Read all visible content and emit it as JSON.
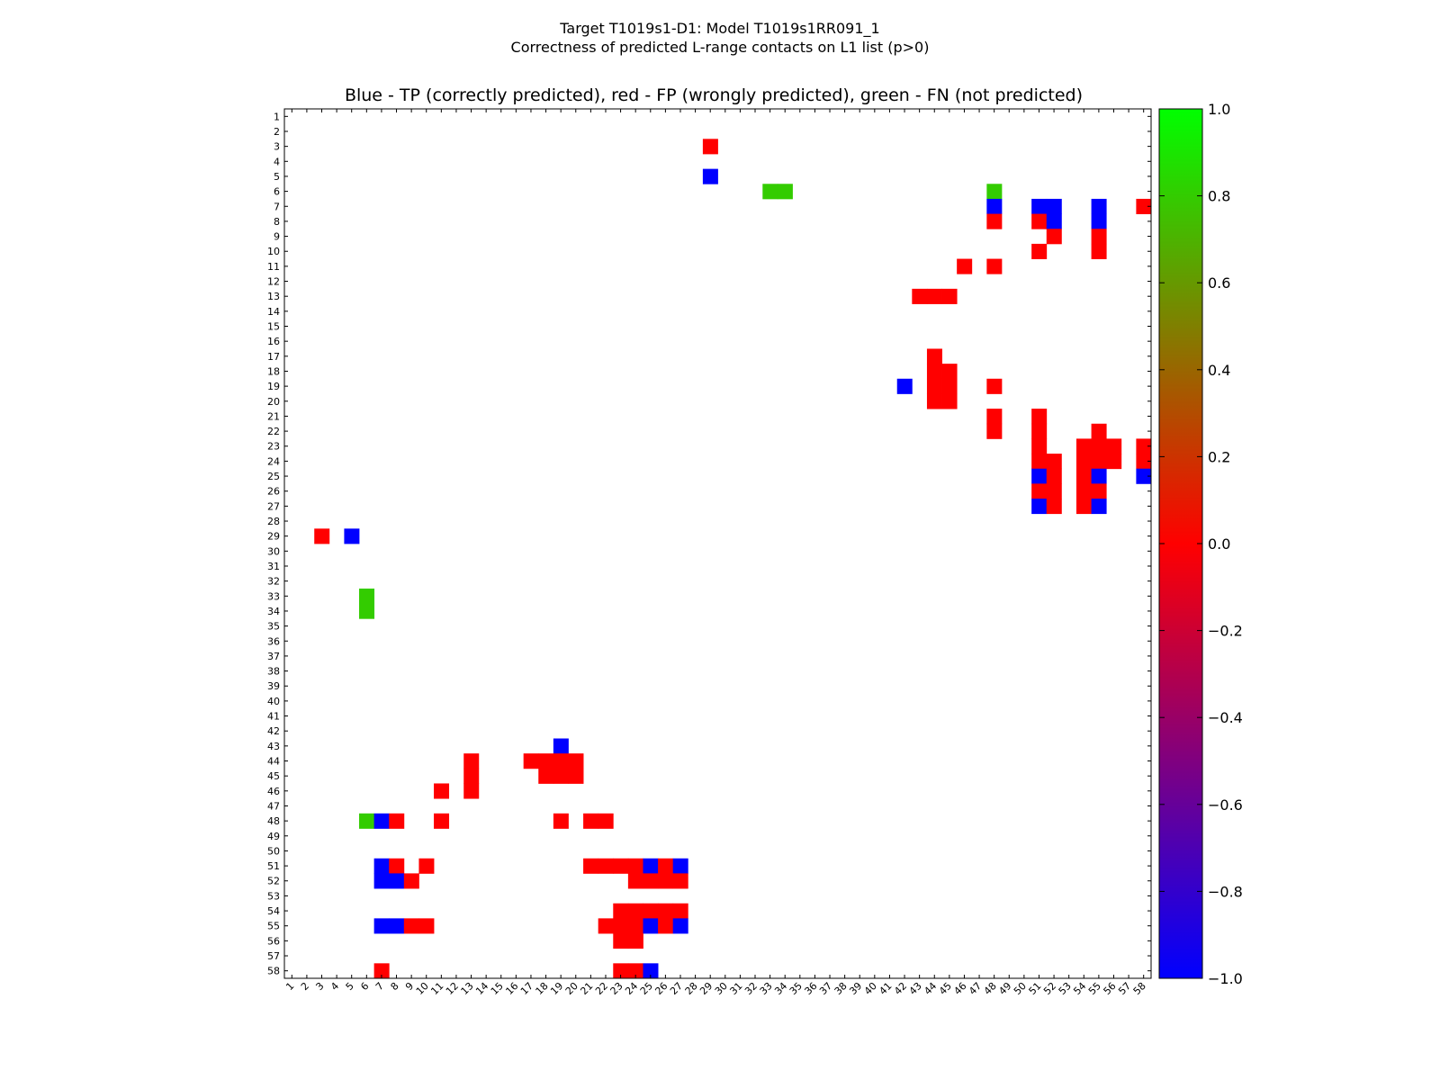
{
  "chart_data": [
    {
      "type": "heatmap",
      "title": "Blue - TP (correctly predicted), red - FP (wrongly predicted), green - FN (not predicted)",
      "suptitle": [
        "Target T1019s1-D1: Model T1019s1RR091_1",
        "Correctness of predicted L-range contacts on L1 list (p>0)"
      ],
      "x_range": [
        1,
        58
      ],
      "y_range": [
        1,
        58
      ],
      "x_tick_labels": [
        "1",
        "2",
        "3",
        "4",
        "5",
        "6",
        "7",
        "8",
        "9",
        "10",
        "11",
        "12",
        "13",
        "14",
        "15",
        "16",
        "17",
        "18",
        "19",
        "20",
        "21",
        "22",
        "23",
        "24",
        "25",
        "26",
        "27",
        "28",
        "29",
        "30",
        "31",
        "32",
        "33",
        "34",
        "35",
        "36",
        "37",
        "38",
        "39",
        "40",
        "41",
        "42",
        "43",
        "44",
        "45",
        "46",
        "47",
        "48",
        "49",
        "50",
        "51",
        "52",
        "53",
        "54",
        "55",
        "56",
        "57",
        "58"
      ],
      "y_tick_labels": [
        "1",
        "2",
        "3",
        "4",
        "5",
        "6",
        "7",
        "8",
        "9",
        "10",
        "11",
        "12",
        "13",
        "14",
        "15",
        "16",
        "17",
        "18",
        "19",
        "20",
        "21",
        "22",
        "23",
        "24",
        "25",
        "26",
        "27",
        "28",
        "29",
        "30",
        "31",
        "32",
        "33",
        "34",
        "35",
        "36",
        "37",
        "38",
        "39",
        "40",
        "41",
        "42",
        "43",
        "44",
        "45",
        "46",
        "47",
        "48",
        "49",
        "50",
        "51",
        "52",
        "53",
        "54",
        "55",
        "56",
        "57",
        "58"
      ],
      "legend": {
        "TP": "blue",
        "FP": "red",
        "FN": "green"
      },
      "cells_format": "[column, row, value]  value: -1 = TP (blue), 0 = FP (red), 0.8 = FN (green)",
      "cells": [
        [
          29,
          3,
          0
        ],
        [
          29,
          5,
          -1
        ],
        [
          33,
          6,
          0.8
        ],
        [
          34,
          6,
          0.8
        ],
        [
          48,
          6,
          0.8
        ],
        [
          48,
          7,
          -1
        ],
        [
          51,
          7,
          -1
        ],
        [
          52,
          7,
          -1
        ],
        [
          55,
          7,
          -1
        ],
        [
          58,
          7,
          0
        ],
        [
          48,
          8,
          0
        ],
        [
          51,
          8,
          0
        ],
        [
          52,
          8,
          -1
        ],
        [
          55,
          8,
          -1
        ],
        [
          52,
          9,
          0
        ],
        [
          55,
          9,
          0
        ],
        [
          51,
          10,
          0
        ],
        [
          55,
          10,
          0
        ],
        [
          46,
          11,
          0
        ],
        [
          48,
          11,
          0
        ],
        [
          43,
          13,
          0
        ],
        [
          44,
          13,
          0
        ],
        [
          45,
          13,
          0
        ],
        [
          44,
          17,
          0
        ],
        [
          44,
          18,
          0
        ],
        [
          45,
          18,
          0
        ],
        [
          42,
          19,
          -1
        ],
        [
          44,
          19,
          0
        ],
        [
          45,
          19,
          0
        ],
        [
          48,
          19,
          0
        ],
        [
          44,
          20,
          0
        ],
        [
          45,
          20,
          0
        ],
        [
          48,
          21,
          0
        ],
        [
          51,
          21,
          0
        ],
        [
          48,
          22,
          0
        ],
        [
          51,
          22,
          0
        ],
        [
          55,
          22,
          0
        ],
        [
          51,
          23,
          0
        ],
        [
          54,
          23,
          0
        ],
        [
          55,
          23,
          0
        ],
        [
          56,
          23,
          0
        ],
        [
          58,
          23,
          0
        ],
        [
          51,
          24,
          0
        ],
        [
          52,
          24,
          0
        ],
        [
          54,
          24,
          0
        ],
        [
          55,
          24,
          0
        ],
        [
          56,
          24,
          0
        ],
        [
          58,
          24,
          0
        ],
        [
          51,
          25,
          -1
        ],
        [
          52,
          25,
          0
        ],
        [
          54,
          25,
          0
        ],
        [
          55,
          25,
          -1
        ],
        [
          58,
          25,
          -1
        ],
        [
          51,
          26,
          0
        ],
        [
          52,
          26,
          0
        ],
        [
          54,
          26,
          0
        ],
        [
          55,
          26,
          0
        ],
        [
          51,
          27,
          -1
        ],
        [
          52,
          27,
          0
        ],
        [
          54,
          27,
          0
        ],
        [
          55,
          27,
          -1
        ],
        [
          3,
          29,
          0
        ],
        [
          5,
          29,
          -1
        ],
        [
          6,
          33,
          0.8
        ],
        [
          6,
          34,
          0.8
        ],
        [
          19,
          43,
          -1
        ],
        [
          13,
          44,
          0
        ],
        [
          17,
          44,
          0
        ],
        [
          18,
          44,
          0
        ],
        [
          19,
          44,
          0
        ],
        [
          20,
          44,
          0
        ],
        [
          13,
          45,
          0
        ],
        [
          18,
          45,
          0
        ],
        [
          19,
          45,
          0
        ],
        [
          20,
          45,
          0
        ],
        [
          11,
          46,
          0
        ],
        [
          13,
          46,
          0
        ],
        [
          6,
          48,
          0.8
        ],
        [
          7,
          48,
          -1
        ],
        [
          8,
          48,
          0
        ],
        [
          11,
          48,
          0
        ],
        [
          19,
          48,
          0
        ],
        [
          21,
          48,
          0
        ],
        [
          22,
          48,
          0
        ],
        [
          7,
          51,
          -1
        ],
        [
          8,
          51,
          0
        ],
        [
          10,
          51,
          0
        ],
        [
          21,
          51,
          0
        ],
        [
          22,
          51,
          0
        ],
        [
          23,
          51,
          0
        ],
        [
          24,
          51,
          0
        ],
        [
          25,
          51,
          -1
        ],
        [
          26,
          51,
          0
        ],
        [
          27,
          51,
          -1
        ],
        [
          7,
          52,
          -1
        ],
        [
          8,
          52,
          -1
        ],
        [
          9,
          52,
          0
        ],
        [
          24,
          52,
          0
        ],
        [
          25,
          52,
          0
        ],
        [
          26,
          52,
          0
        ],
        [
          27,
          52,
          0
        ],
        [
          23,
          54,
          0
        ],
        [
          24,
          54,
          0
        ],
        [
          25,
          54,
          0
        ],
        [
          26,
          54,
          0
        ],
        [
          27,
          54,
          0
        ],
        [
          7,
          55,
          -1
        ],
        [
          8,
          55,
          -1
        ],
        [
          9,
          55,
          0
        ],
        [
          10,
          55,
          0
        ],
        [
          22,
          55,
          0
        ],
        [
          23,
          55,
          0
        ],
        [
          24,
          55,
          0
        ],
        [
          25,
          55,
          -1
        ],
        [
          26,
          55,
          0
        ],
        [
          27,
          55,
          -1
        ],
        [
          23,
          56,
          0
        ],
        [
          24,
          56,
          0
        ],
        [
          7,
          58,
          0
        ],
        [
          23,
          58,
          0
        ],
        [
          24,
          58,
          0
        ],
        [
          25,
          58,
          -1
        ]
      ]
    },
    {
      "type": "colorbar",
      "range": [
        -1.0,
        1.0
      ],
      "tick_labels": [
        "1.0",
        "0.8",
        "0.6",
        "0.4",
        "0.2",
        "0.0",
        "−0.2",
        "−0.4",
        "−0.6",
        "−0.8",
        "−1.0"
      ],
      "colors": {
        "low": "#0000ff",
        "mid": "#ff0000",
        "high": "#00ff00"
      }
    }
  ]
}
